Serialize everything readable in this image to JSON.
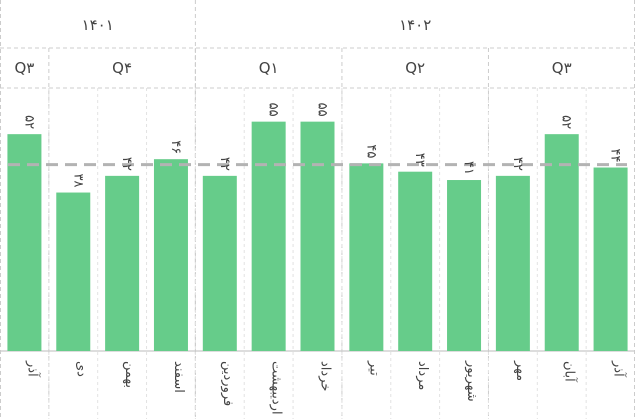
{
  "chart_data": {
    "type": "bar",
    "title": "",
    "xlabel": "",
    "ylabel": "",
    "ylim": [
      0,
      60
    ],
    "grid": false,
    "bar_color": "#66cc8a",
    "reference_line_color": "#b3b3b3",
    "reference_value": 44.7,
    "years": [
      {
        "label": "۱۴۰۱",
        "span": 4
      },
      {
        "label": "۱۴۰۲",
        "span": 9
      }
    ],
    "quarters": [
      {
        "label": "Q۳",
        "span": 1
      },
      {
        "label": "Q۴",
        "span": 3
      },
      {
        "label": "Q۱",
        "span": 3
      },
      {
        "label": "Q۲",
        "span": 3
      },
      {
        "label": "Q۳",
        "span": 3
      }
    ],
    "categories": [
      "آذر",
      "دی",
      "بهمن",
      "اسفند",
      "فروردین",
      "اردیبهشت",
      "خرداد",
      "تیر",
      "مرداد",
      "شهریور",
      "مهر",
      "آبان",
      "آذر"
    ],
    "values": [
      52,
      38,
      42,
      46,
      42,
      55,
      55,
      45,
      43,
      41,
      42,
      52,
      44
    ],
    "value_labels": [
      "۵۲",
      "۳۸",
      "۴۲",
      "۴۶",
      "۴۲",
      "۵۵",
      "۵۵",
      "۴۵",
      "۴۳",
      "۴۱",
      "۴۲",
      "۵۲",
      "۴۴"
    ]
  }
}
